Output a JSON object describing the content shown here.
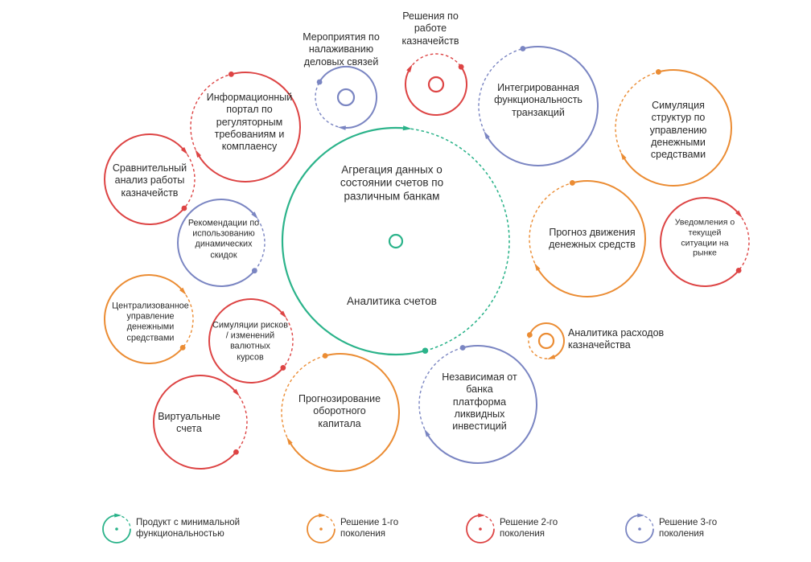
{
  "colors": {
    "green": "#2bb38a",
    "orange": "#eb8c33",
    "red": "#dd4444",
    "blue": "#7a85c2"
  },
  "circles": [
    {
      "id": "aggregation",
      "color": "green",
      "lines": [
        "Агрегация данных о",
        "состоянии счетов по",
        "различным банкам"
      ],
      "sublabel": "Аналитика счетов"
    },
    {
      "id": "events",
      "color": "blue",
      "lines": [
        "Мероприятия  по",
        "налаживанию",
        "деловых связей"
      ]
    },
    {
      "id": "treasury-solutions",
      "color": "red",
      "lines": [
        "Решения по",
        "работе",
        "казначейств"
      ]
    },
    {
      "id": "info-portal",
      "color": "red",
      "lines": [
        "Информационный",
        "портал по",
        "регуляторным",
        "требованиям и",
        "комплаенсу"
      ]
    },
    {
      "id": "integrated",
      "color": "blue",
      "lines": [
        "Интегрированная",
        "функциональность",
        "транзакций"
      ]
    },
    {
      "id": "simulation-structures",
      "color": "orange",
      "lines": [
        "Симуляция",
        "структур по",
        "управлению",
        "денежными",
        "средствами"
      ]
    },
    {
      "id": "comparative",
      "color": "red",
      "lines": [
        "Сравнительный",
        "анализ работы",
        "казначейств"
      ]
    },
    {
      "id": "recommendations",
      "color": "blue",
      "lines": [
        "Рекомендации по",
        "использованию",
        "динамических",
        "скидок"
      ]
    },
    {
      "id": "cash-forecast",
      "color": "orange",
      "lines": [
        "Прогноз движения",
        "денежных средств"
      ]
    },
    {
      "id": "market-alerts",
      "color": "red",
      "lines": [
        "Уведомления о",
        "текущей",
        "ситуации на",
        "рынке"
      ]
    },
    {
      "id": "centralized",
      "color": "orange",
      "lines": [
        "Централизованное",
        "управление",
        "денежными",
        "средствами"
      ]
    },
    {
      "id": "risk-simulation",
      "color": "red",
      "lines": [
        "Симуляции рисков",
        "/ изменений",
        "валютных",
        "курсов"
      ]
    },
    {
      "id": "expense-analytics",
      "color": "orange",
      "lines": [
        "Аналитика  расходов",
        "казначейства"
      ]
    },
    {
      "id": "virtual-accounts",
      "color": "red",
      "lines": [
        "Виртуальные",
        "счета"
      ]
    },
    {
      "id": "working-capital",
      "color": "orange",
      "lines": [
        "Прогнозирование",
        "оборотного",
        "капитала"
      ]
    },
    {
      "id": "liquidity-platform",
      "color": "blue",
      "lines": [
        "Независимая  от",
        "банка",
        "платформа",
        "ликвидных",
        "инвестиций"
      ]
    }
  ],
  "legend": [
    {
      "color": "green",
      "lines": [
        "Продукт с минимальной",
        "функциональностью"
      ]
    },
    {
      "color": "orange",
      "lines": [
        "Решение 1-го",
        "поколения"
      ]
    },
    {
      "color": "red",
      "lines": [
        "Решение 2-го",
        "поколения"
      ]
    },
    {
      "color": "blue",
      "lines": [
        "Решение 3-го",
        "поколения"
      ]
    }
  ]
}
